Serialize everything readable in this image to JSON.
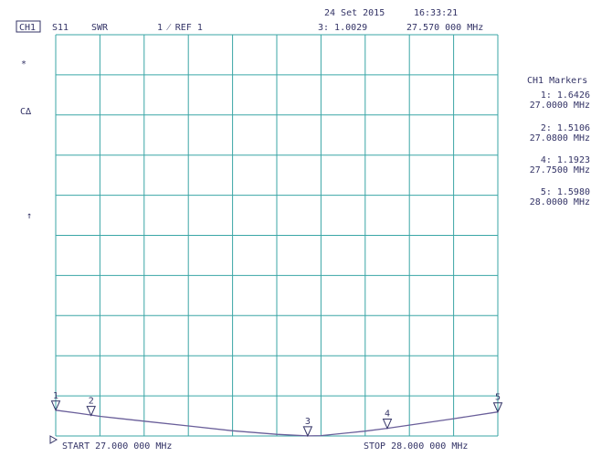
{
  "chart_data": {
    "type": "line",
    "date": "24 Set 2015",
    "time": "16:33:21",
    "channel": "CH1",
    "parameter": "S11",
    "format": "SWR",
    "scale_label": "1 ⁄ REF 1",
    "symbols": [
      "*",
      "C∆",
      "↑"
    ],
    "start_label": "START 27.000 000 MHz",
    "stop_label": "STOP 28.000 000 MHz",
    "xlim": [
      27.0,
      28.0
    ],
    "ylim": [
      1,
      11
    ],
    "x": [
      27.0,
      27.05,
      27.1,
      27.2,
      27.3,
      27.4,
      27.5,
      27.57,
      27.6,
      27.7,
      27.75,
      27.8,
      27.9,
      28.0
    ],
    "series": [
      {
        "color": "#6a5f9a",
        "values": [
          1.6426,
          1.57,
          1.49,
          1.37,
          1.25,
          1.13,
          1.04,
          1.0029,
          1.01,
          1.12,
          1.1923,
          1.27,
          1.43,
          1.598
        ]
      }
    ],
    "markers": {
      "title": "CH1 Markers",
      "ids": [
        "1",
        "2",
        "3",
        "4",
        "5"
      ],
      "x": [
        27.0,
        27.08,
        27.57,
        27.75,
        28.0
      ],
      "x_labels": [
        "27.0000 MHz",
        "27.0800 MHz",
        "27.570 000 MHz",
        "27.7500 MHz",
        "28.0000 MHz"
      ],
      "values": [
        1.6426,
        1.5106,
        1.0029,
        1.1923,
        1.598
      ],
      "value_labels": [
        "1: 1.6426",
        "2: 1.5106",
        "3: 1.0029",
        "4: 1.1923",
        "5: 1.5980"
      ]
    }
  }
}
